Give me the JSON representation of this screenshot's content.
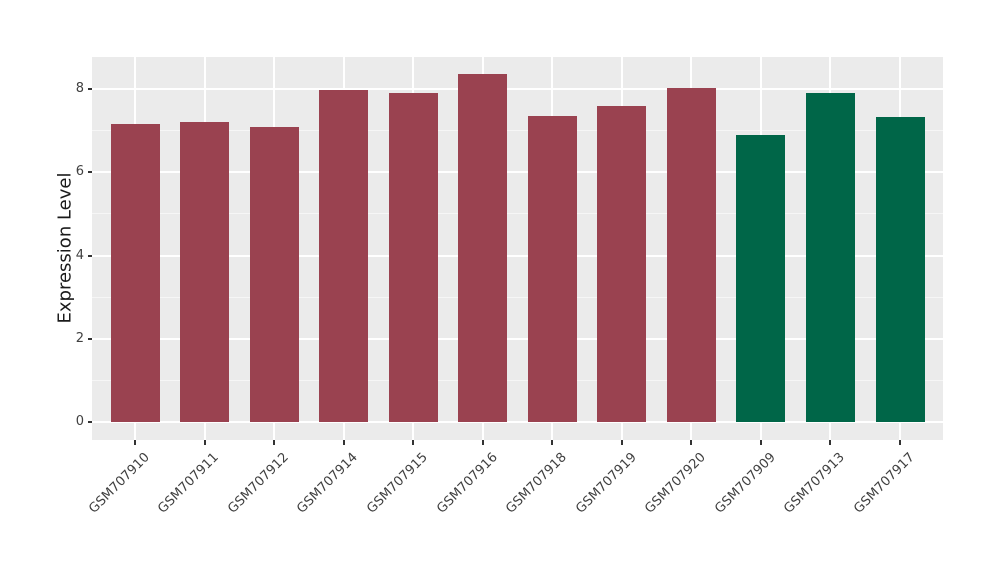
{
  "chart_data": {
    "type": "bar",
    "title": "",
    "xlabel": "",
    "ylabel": "Expression Level",
    "categories": [
      "GSM707910",
      "GSM707911",
      "GSM707912",
      "GSM707914",
      "GSM707915",
      "GSM707916",
      "GSM707918",
      "GSM707919",
      "GSM707920",
      "GSM707909",
      "GSM707913",
      "GSM707917"
    ],
    "values": [
      7.16,
      7.21,
      7.08,
      7.97,
      7.89,
      8.35,
      7.34,
      7.58,
      8.02,
      6.9,
      7.9,
      7.32
    ],
    "groups": [
      "red",
      "red",
      "red",
      "red",
      "red",
      "red",
      "red",
      "red",
      "red",
      "green",
      "green",
      "green"
    ],
    "group_colors": {
      "red": "#9A4250",
      "green": "#006648"
    },
    "yticks": [
      0,
      2,
      4,
      6,
      8
    ],
    "yticks_minor": [
      1,
      3,
      5,
      7
    ],
    "ylim": [
      -0.42,
      8.76
    ],
    "bar_rel_width": 0.7,
    "grid": "horizontal major+minor, vertical major at category centers",
    "legend": "none",
    "panel_bg": "#EBEBEB",
    "grid_major_color": "#FFFFFF",
    "x_tick_rotation_deg": 45
  }
}
